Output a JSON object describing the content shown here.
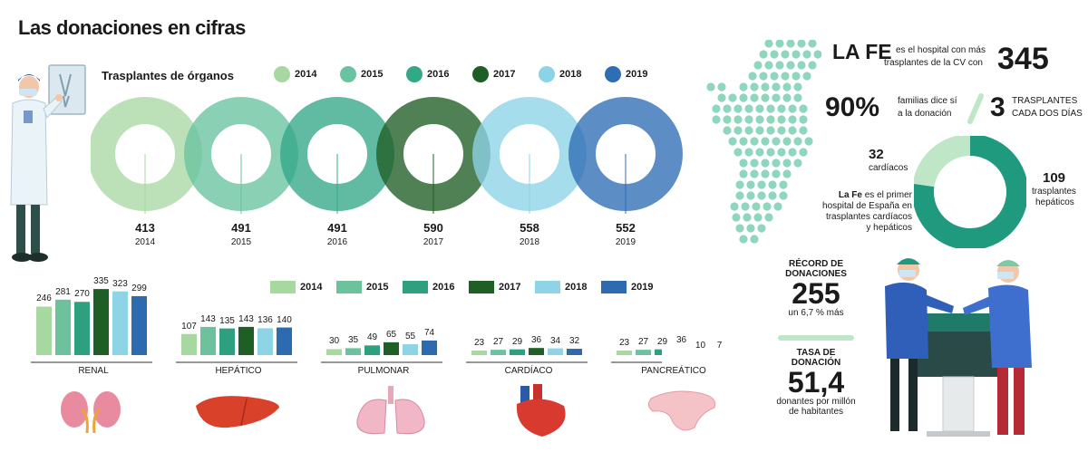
{
  "title": "Las donaciones en cifras",
  "years": [
    "2014",
    "2015",
    "2016",
    "2017",
    "2018",
    "2019"
  ],
  "colors": {
    "ring": [
      "#a9d7a3",
      "#69c3a0",
      "#33a888",
      "#1f5e24",
      "#8dd3e8",
      "#2f6db5"
    ],
    "bar": [
      "#a7d8a0",
      "#6cc29c",
      "#2e9f7f",
      "#1f5e24",
      "#8fd3e6",
      "#2d6ab0"
    ],
    "accent": "#2e9f7f",
    "light": "#bfe6c7"
  },
  "chart_data": [
    {
      "type": "pie",
      "subtype": "ring-series",
      "title": "Trasplantes de órganos",
      "categories": [
        "2014",
        "2015",
        "2016",
        "2017",
        "2018",
        "2019"
      ],
      "values": [
        413,
        491,
        491,
        590,
        558,
        552
      ],
      "value_labels": [
        "413",
        "491",
        "491",
        "590",
        "558",
        "552"
      ]
    },
    {
      "type": "bar",
      "categories": [
        "RENAL",
        "HEPÁTICO",
        "PULMONAR",
        "CARDÍACO",
        "PANCREÁTICO"
      ],
      "series": [
        {
          "name": "2014",
          "values": [
            246,
            107,
            30,
            23,
            23
          ]
        },
        {
          "name": "2015",
          "values": [
            281,
            143,
            35,
            27,
            27
          ]
        },
        {
          "name": "2016",
          "values": [
            270,
            135,
            49,
            29,
            29
          ]
        },
        {
          "name": "2017",
          "values": [
            335,
            143,
            65,
            36,
            36
          ]
        },
        {
          "name": "2018",
          "values": [
            323,
            136,
            55,
            34,
            10
          ]
        },
        {
          "name": "2019",
          "values": [
            299,
            140,
            74,
            32,
            7
          ]
        }
      ],
      "ylim": [
        0,
        340
      ]
    },
    {
      "type": "pie",
      "subtype": "donut",
      "categories": [
        "cardíacos",
        "trasplantes hepáticos"
      ],
      "values": [
        32,
        109
      ],
      "value_labels": [
        "32",
        "109"
      ],
      "colors": [
        "#bfe6c7",
        "#1f9a7e"
      ]
    }
  ],
  "organ_labels": [
    "RENAL",
    "HEPÁTICO",
    "PULMONAR",
    "CARDÍACO",
    "PANCREÁTICO"
  ],
  "stats": {
    "lafe_name": "LA FE",
    "lafe_text_1": "es el hospital con más",
    "lafe_text_2": "trasplantes de la CV con",
    "lafe_count": "345",
    "families_pct": "90%",
    "families_text_1": "familias dice sí",
    "families_text_2": "a la donación",
    "transplants_num": "3",
    "transplants_text_1": "TRASPLANTES",
    "transplants_text_2": "CADA DOS DÍAS",
    "donut_small_value": "32",
    "donut_small_label": "cardíacos",
    "donut_big_value": "109",
    "donut_big_label_1": "trasplantes",
    "donut_big_label_2": "hepáticos",
    "lafe_first_bold": "La Fe",
    "lafe_first_1": "es el primer",
    "lafe_first_2": "hospital de España en",
    "lafe_first_3": "trasplantes cardíacos",
    "lafe_first_4": "y hepáticos",
    "record_label_1": "RÉCORD DE",
    "record_label_2": "DONACIONES",
    "record_value": "255",
    "record_sub": "un 6,7 % más",
    "rate_label_1": "TASA DE",
    "rate_label_2": "DONACIÓN",
    "rate_value": "51,4",
    "rate_sub_1": "donantes por millón",
    "rate_sub_2": "de habitantes"
  },
  "icons": {
    "doctor": "doctor-with-xray-illustration",
    "kidneys": "kidneys-icon",
    "liver": "liver-icon",
    "lungs": "lungs-icon",
    "heart": "heart-icon",
    "pancreas": "pancreas-icon",
    "map": "valencian-community-dot-map",
    "surgeons": "surgeons-operating-illustration"
  }
}
